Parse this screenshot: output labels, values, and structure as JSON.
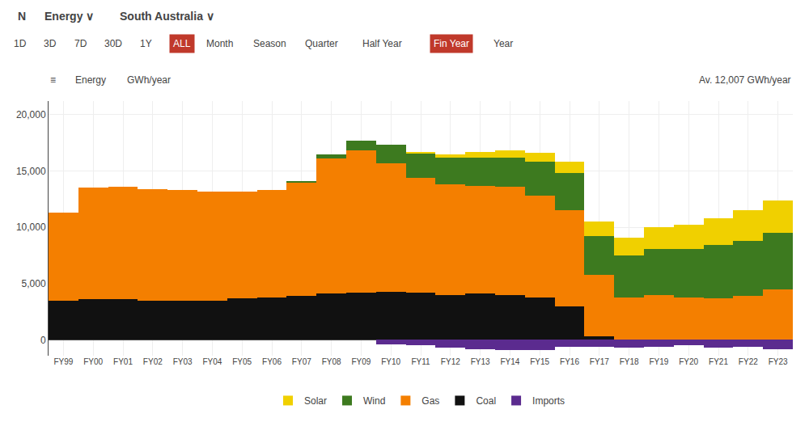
{
  "chart_data": {
    "type": "bar",
    "stacked": true,
    "annotations": [
      [
        "N",
        "Energy ∨",
        "South Australia ∨"
      ],
      [
        "1D",
        "3D",
        "7D",
        "30D",
        "1Y",
        {
          "text": "ALL",
          "color": "#c0392b"
        },
        "Month",
        "Season",
        "Quarter",
        "Half Year",
        {
          "text": "Fin Year",
          "color": "#c0392b"
        },
        "Year"
      ],
      [
        "≡",
        "Energy",
        "GWh/year"
      ],
      [
        "Av. 12,007 GWh/year"
      ]
    ],
    "categories": [
      "FY99",
      "FY00",
      "FY01",
      "FY02",
      "FY03",
      "FY04",
      "FY05",
      "FY06",
      "FY07",
      "FY08",
      "FY09",
      "FY10",
      "FY11",
      "FY12",
      "FY13",
      "FY14",
      "FY15",
      "FY16",
      "FY17",
      "FY18",
      "FY19",
      "FY20",
      "FY21",
      "FY22",
      "FY23"
    ],
    "series": [
      {
        "name": "Coal",
        "color": "#111111",
        "values": [
          3500,
          3600,
          3600,
          3500,
          3500,
          3500,
          3700,
          3800,
          3900,
          4100,
          4200,
          4300,
          4200,
          4000,
          4100,
          4000,
          3800,
          3000,
          300,
          0,
          0,
          0,
          0,
          0,
          0
        ]
      },
      {
        "name": "Gas",
        "color": "#f47f00",
        "values": [
          7800,
          9900,
          10000,
          9900,
          9800,
          9700,
          9500,
          9500,
          10100,
          12000,
          12600,
          11400,
          10200,
          9800,
          9600,
          9600,
          9000,
          8500,
          5500,
          3800,
          4000,
          3800,
          3700,
          3900,
          4500
        ]
      },
      {
        "name": "Wind",
        "color": "#3d7a1f",
        "values": [
          0,
          0,
          0,
          0,
          0,
          0,
          0,
          0,
          100,
          400,
          900,
          1600,
          2200,
          2400,
          2500,
          2600,
          3000,
          3300,
          3400,
          3700,
          4100,
          4300,
          4700,
          4900,
          5000
        ]
      },
      {
        "name": "Solar",
        "color": "#f0d000",
        "values": [
          0,
          0,
          0,
          0,
          0,
          0,
          0,
          0,
          0,
          0,
          0,
          0,
          50,
          300,
          450,
          600,
          800,
          1000,
          1300,
          1600,
          1900,
          2100,
          2400,
          2700,
          2900
        ]
      },
      {
        "name": "Imports",
        "color": "#5b2b8f",
        "values": [
          0,
          0,
          0,
          0,
          0,
          0,
          0,
          0,
          0,
          0,
          0,
          -400,
          -500,
          -700,
          -800,
          -900,
          -900,
          -600,
          -600,
          -700,
          -600,
          -500,
          -700,
          -600,
          -800
        ]
      }
    ],
    "ylim": [
      -1400,
      21200
    ],
    "yticks": [
      0,
      {
        "value": 5000,
        "label": "5,000"
      },
      {
        "value": 10000,
        "label": "10,000"
      },
      {
        "value": 15000,
        "label": "15,000"
      },
      {
        "value": 20000,
        "label": "20,000"
      }
    ],
    "grid": true,
    "legend": "bottom"
  }
}
